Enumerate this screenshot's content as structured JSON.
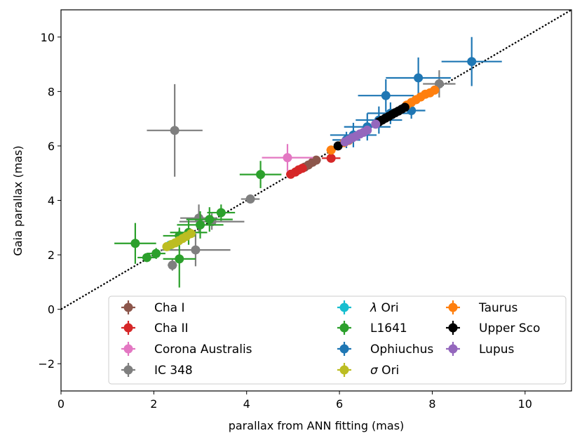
{
  "chart_data": {
    "type": "scatter",
    "title": "",
    "xlabel": "parallax from ANN fitting (mas)",
    "ylabel": "Gaia parallax (mas)",
    "xlim": [
      0,
      11
    ],
    "ylim": [
      -3,
      11
    ],
    "xticks": [
      0,
      2,
      4,
      6,
      8,
      10
    ],
    "yticks": [
      -2,
      0,
      2,
      4,
      6,
      8,
      10
    ],
    "reference_line": {
      "label": "y = x",
      "style": "dotted",
      "color": "#000000"
    },
    "legend_location": "lower right",
    "legend_columns": 3,
    "series": [
      {
        "name": "Cha I",
        "name_prefix": "",
        "name_text": "Cha I",
        "color": "#8c564b",
        "points": [
          {
            "x": 5.25,
            "y": 5.22,
            "xerr": 0.08,
            "yerr": 0.06
          },
          {
            "x": 5.33,
            "y": 5.3,
            "xerr": 0.08,
            "yerr": 0.06
          },
          {
            "x": 5.42,
            "y": 5.4,
            "xerr": 0.1,
            "yerr": 0.06
          },
          {
            "x": 5.5,
            "y": 5.48,
            "xerr": 0.1,
            "yerr": 0.06
          }
        ]
      },
      {
        "name": "Cha II",
        "name_prefix": "",
        "name_text": "Cha II",
        "color": "#d62728",
        "points": [
          {
            "x": 4.95,
            "y": 4.96,
            "xerr": 0.1,
            "yerr": 0.08
          },
          {
            "x": 5.05,
            "y": 5.04,
            "xerr": 0.1,
            "yerr": 0.08
          },
          {
            "x": 5.12,
            "y": 5.12,
            "xerr": 0.1,
            "yerr": 0.08
          },
          {
            "x": 5.2,
            "y": 5.18,
            "xerr": 0.1,
            "yerr": 0.08
          },
          {
            "x": 5.82,
            "y": 5.55,
            "xerr": 0.2,
            "yerr": 0.15
          }
        ]
      },
      {
        "name": "Corona Australis",
        "name_prefix": "",
        "name_text": "Corona Australis",
        "color": "#e377c2",
        "points": [
          {
            "x": 4.88,
            "y": 5.57,
            "xerr": 0.55,
            "yerr": 0.5
          }
        ]
      },
      {
        "name": "IC 348",
        "name_prefix": "",
        "name_text": "IC 348",
        "color": "#7f7f7f",
        "points": [
          {
            "x": 2.45,
            "y": 6.57,
            "xerr": 0.6,
            "yerr": 1.7
          },
          {
            "x": 2.4,
            "y": 1.62,
            "xerr": 0.1,
            "yerr": 0.2
          },
          {
            "x": 2.9,
            "y": 2.18,
            "xerr": 0.75,
            "yerr": 0.6
          },
          {
            "x": 2.97,
            "y": 3.35,
            "xerr": 0.4,
            "yerr": 0.5
          },
          {
            "x": 3.25,
            "y": 3.22,
            "xerr": 0.7,
            "yerr": 0.3
          },
          {
            "x": 4.08,
            "y": 4.05,
            "xerr": 0.2,
            "yerr": 0.1
          },
          {
            "x": 8.15,
            "y": 8.28,
            "xerr": 0.35,
            "yerr": 0.5
          }
        ]
      },
      {
        "name": "λ Ori",
        "name_prefix": "λ",
        "name_text": " Ori",
        "color": "#17becf",
        "points": [
          {
            "x": 2.35,
            "y": 2.36,
            "xerr": 0.05,
            "yerr": 0.05
          }
        ]
      },
      {
        "name": "L1641",
        "name_prefix": "",
        "name_text": "L1641",
        "color": "#2ca02c",
        "points": [
          {
            "x": 1.6,
            "y": 2.42,
            "xerr": 0.45,
            "yerr": 0.75
          },
          {
            "x": 1.85,
            "y": 1.9,
            "xerr": 0.2,
            "yerr": 0.15
          },
          {
            "x": 2.05,
            "y": 2.05,
            "xerr": 0.2,
            "yerr": 0.2
          },
          {
            "x": 2.55,
            "y": 1.85,
            "xerr": 0.35,
            "yerr": 1.05
          },
          {
            "x": 2.55,
            "y": 2.7,
            "xerr": 0.35,
            "yerr": 0.3
          },
          {
            "x": 2.75,
            "y": 2.82,
            "xerr": 0.4,
            "yerr": 0.45
          },
          {
            "x": 3.0,
            "y": 3.1,
            "xerr": 0.5,
            "yerr": 0.5
          },
          {
            "x": 3.2,
            "y": 3.3,
            "xerr": 0.5,
            "yerr": 0.45
          },
          {
            "x": 3.45,
            "y": 3.55,
            "xerr": 0.3,
            "yerr": 0.3
          },
          {
            "x": 4.3,
            "y": 4.95,
            "xerr": 0.45,
            "yerr": 0.5
          }
        ]
      },
      {
        "name": "Ophiuchus",
        "name_prefix": "",
        "name_text": "Ophiuchus",
        "color": "#1f77b4",
        "points": [
          {
            "x": 8.85,
            "y": 9.1,
            "xerr": 0.65,
            "yerr": 0.9
          },
          {
            "x": 7.7,
            "y": 8.5,
            "xerr": 0.7,
            "yerr": 0.75
          },
          {
            "x": 7.0,
            "y": 7.85,
            "xerr": 0.6,
            "yerr": 0.6
          },
          {
            "x": 7.1,
            "y": 7.2,
            "xerr": 0.5,
            "yerr": 0.4
          },
          {
            "x": 6.85,
            "y": 6.95,
            "xerr": 0.5,
            "yerr": 0.5
          },
          {
            "x": 6.6,
            "y": 6.7,
            "xerr": 0.5,
            "yerr": 0.5
          },
          {
            "x": 6.3,
            "y": 6.4,
            "xerr": 0.5,
            "yerr": 0.45
          },
          {
            "x": 6.15,
            "y": 6.22,
            "xerr": 0.3,
            "yerr": 0.3
          },
          {
            "x": 7.55,
            "y": 7.3,
            "xerr": 0.3,
            "yerr": 0.3
          }
        ]
      },
      {
        "name": "σ Ori",
        "name_prefix": "σ",
        "name_text": " Ori",
        "color": "#bcbd22",
        "points": [
          {
            "x": 2.28,
            "y": 2.3,
            "xerr": 0.05,
            "yerr": 0.05
          },
          {
            "x": 2.38,
            "y": 2.38,
            "xerr": 0.05,
            "yerr": 0.05
          },
          {
            "x": 2.46,
            "y": 2.44,
            "xerr": 0.05,
            "yerr": 0.05
          },
          {
            "x": 2.54,
            "y": 2.52,
            "xerr": 0.05,
            "yerr": 0.05
          },
          {
            "x": 2.62,
            "y": 2.6,
            "xerr": 0.05,
            "yerr": 0.05
          },
          {
            "x": 2.7,
            "y": 2.68,
            "xerr": 0.05,
            "yerr": 0.05
          },
          {
            "x": 2.8,
            "y": 2.78,
            "xerr": 0.05,
            "yerr": 0.05
          }
        ]
      },
      {
        "name": "Taurus",
        "name_prefix": "",
        "name_text": "Taurus",
        "color": "#ff7f0e",
        "points": [
          {
            "x": 5.82,
            "y": 5.85,
            "xerr": 0.1,
            "yerr": 0.1
          },
          {
            "x": 6.1,
            "y": 6.12,
            "xerr": 0.1,
            "yerr": 0.1
          },
          {
            "x": 6.2,
            "y": 6.2,
            "xerr": 0.1,
            "yerr": 0.1
          },
          {
            "x": 7.45,
            "y": 7.5,
            "xerr": 0.1,
            "yerr": 0.1
          },
          {
            "x": 7.55,
            "y": 7.6,
            "xerr": 0.1,
            "yerr": 0.1
          },
          {
            "x": 7.65,
            "y": 7.7,
            "xerr": 0.1,
            "yerr": 0.1
          },
          {
            "x": 7.75,
            "y": 7.8,
            "xerr": 0.1,
            "yerr": 0.1
          },
          {
            "x": 7.85,
            "y": 7.9,
            "xerr": 0.1,
            "yerr": 0.1
          },
          {
            "x": 7.95,
            "y": 7.95,
            "xerr": 0.1,
            "yerr": 0.1
          },
          {
            "x": 8.05,
            "y": 8.05,
            "xerr": 0.1,
            "yerr": 0.1
          }
        ]
      },
      {
        "name": "Upper Sco",
        "name_prefix": "",
        "name_text": "Upper Sco",
        "color": "#000000",
        "points": [
          {
            "x": 5.97,
            "y": 6.0,
            "xerr": 0.05,
            "yerr": 0.05
          },
          {
            "x": 6.85,
            "y": 6.88,
            "xerr": 0.05,
            "yerr": 0.05
          },
          {
            "x": 6.92,
            "y": 6.95,
            "xerr": 0.05,
            "yerr": 0.05
          },
          {
            "x": 6.99,
            "y": 7.02,
            "xerr": 0.05,
            "yerr": 0.05
          },
          {
            "x": 7.06,
            "y": 7.08,
            "xerr": 0.05,
            "yerr": 0.05
          },
          {
            "x": 7.13,
            "y": 7.15,
            "xerr": 0.05,
            "yerr": 0.05
          },
          {
            "x": 7.2,
            "y": 7.22,
            "xerr": 0.05,
            "yerr": 0.05
          },
          {
            "x": 7.27,
            "y": 7.28,
            "xerr": 0.05,
            "yerr": 0.05
          },
          {
            "x": 7.34,
            "y": 7.35,
            "xerr": 0.05,
            "yerr": 0.05
          },
          {
            "x": 7.41,
            "y": 7.42,
            "xerr": 0.05,
            "yerr": 0.05
          }
        ]
      },
      {
        "name": "Lupus",
        "name_prefix": "",
        "name_text": "Lupus",
        "color": "#9467bd",
        "points": [
          {
            "x": 6.12,
            "y": 6.15,
            "xerr": 0.08,
            "yerr": 0.08
          },
          {
            "x": 6.2,
            "y": 6.22,
            "xerr": 0.08,
            "yerr": 0.08
          },
          {
            "x": 6.28,
            "y": 6.3,
            "xerr": 0.08,
            "yerr": 0.08
          },
          {
            "x": 6.36,
            "y": 6.36,
            "xerr": 0.08,
            "yerr": 0.08
          },
          {
            "x": 6.44,
            "y": 6.44,
            "xerr": 0.08,
            "yerr": 0.08
          },
          {
            "x": 6.52,
            "y": 6.5,
            "xerr": 0.08,
            "yerr": 0.08
          },
          {
            "x": 6.6,
            "y": 6.58,
            "xerr": 0.08,
            "yerr": 0.08
          },
          {
            "x": 6.78,
            "y": 6.8,
            "xerr": 0.08,
            "yerr": 0.08
          }
        ]
      }
    ]
  }
}
